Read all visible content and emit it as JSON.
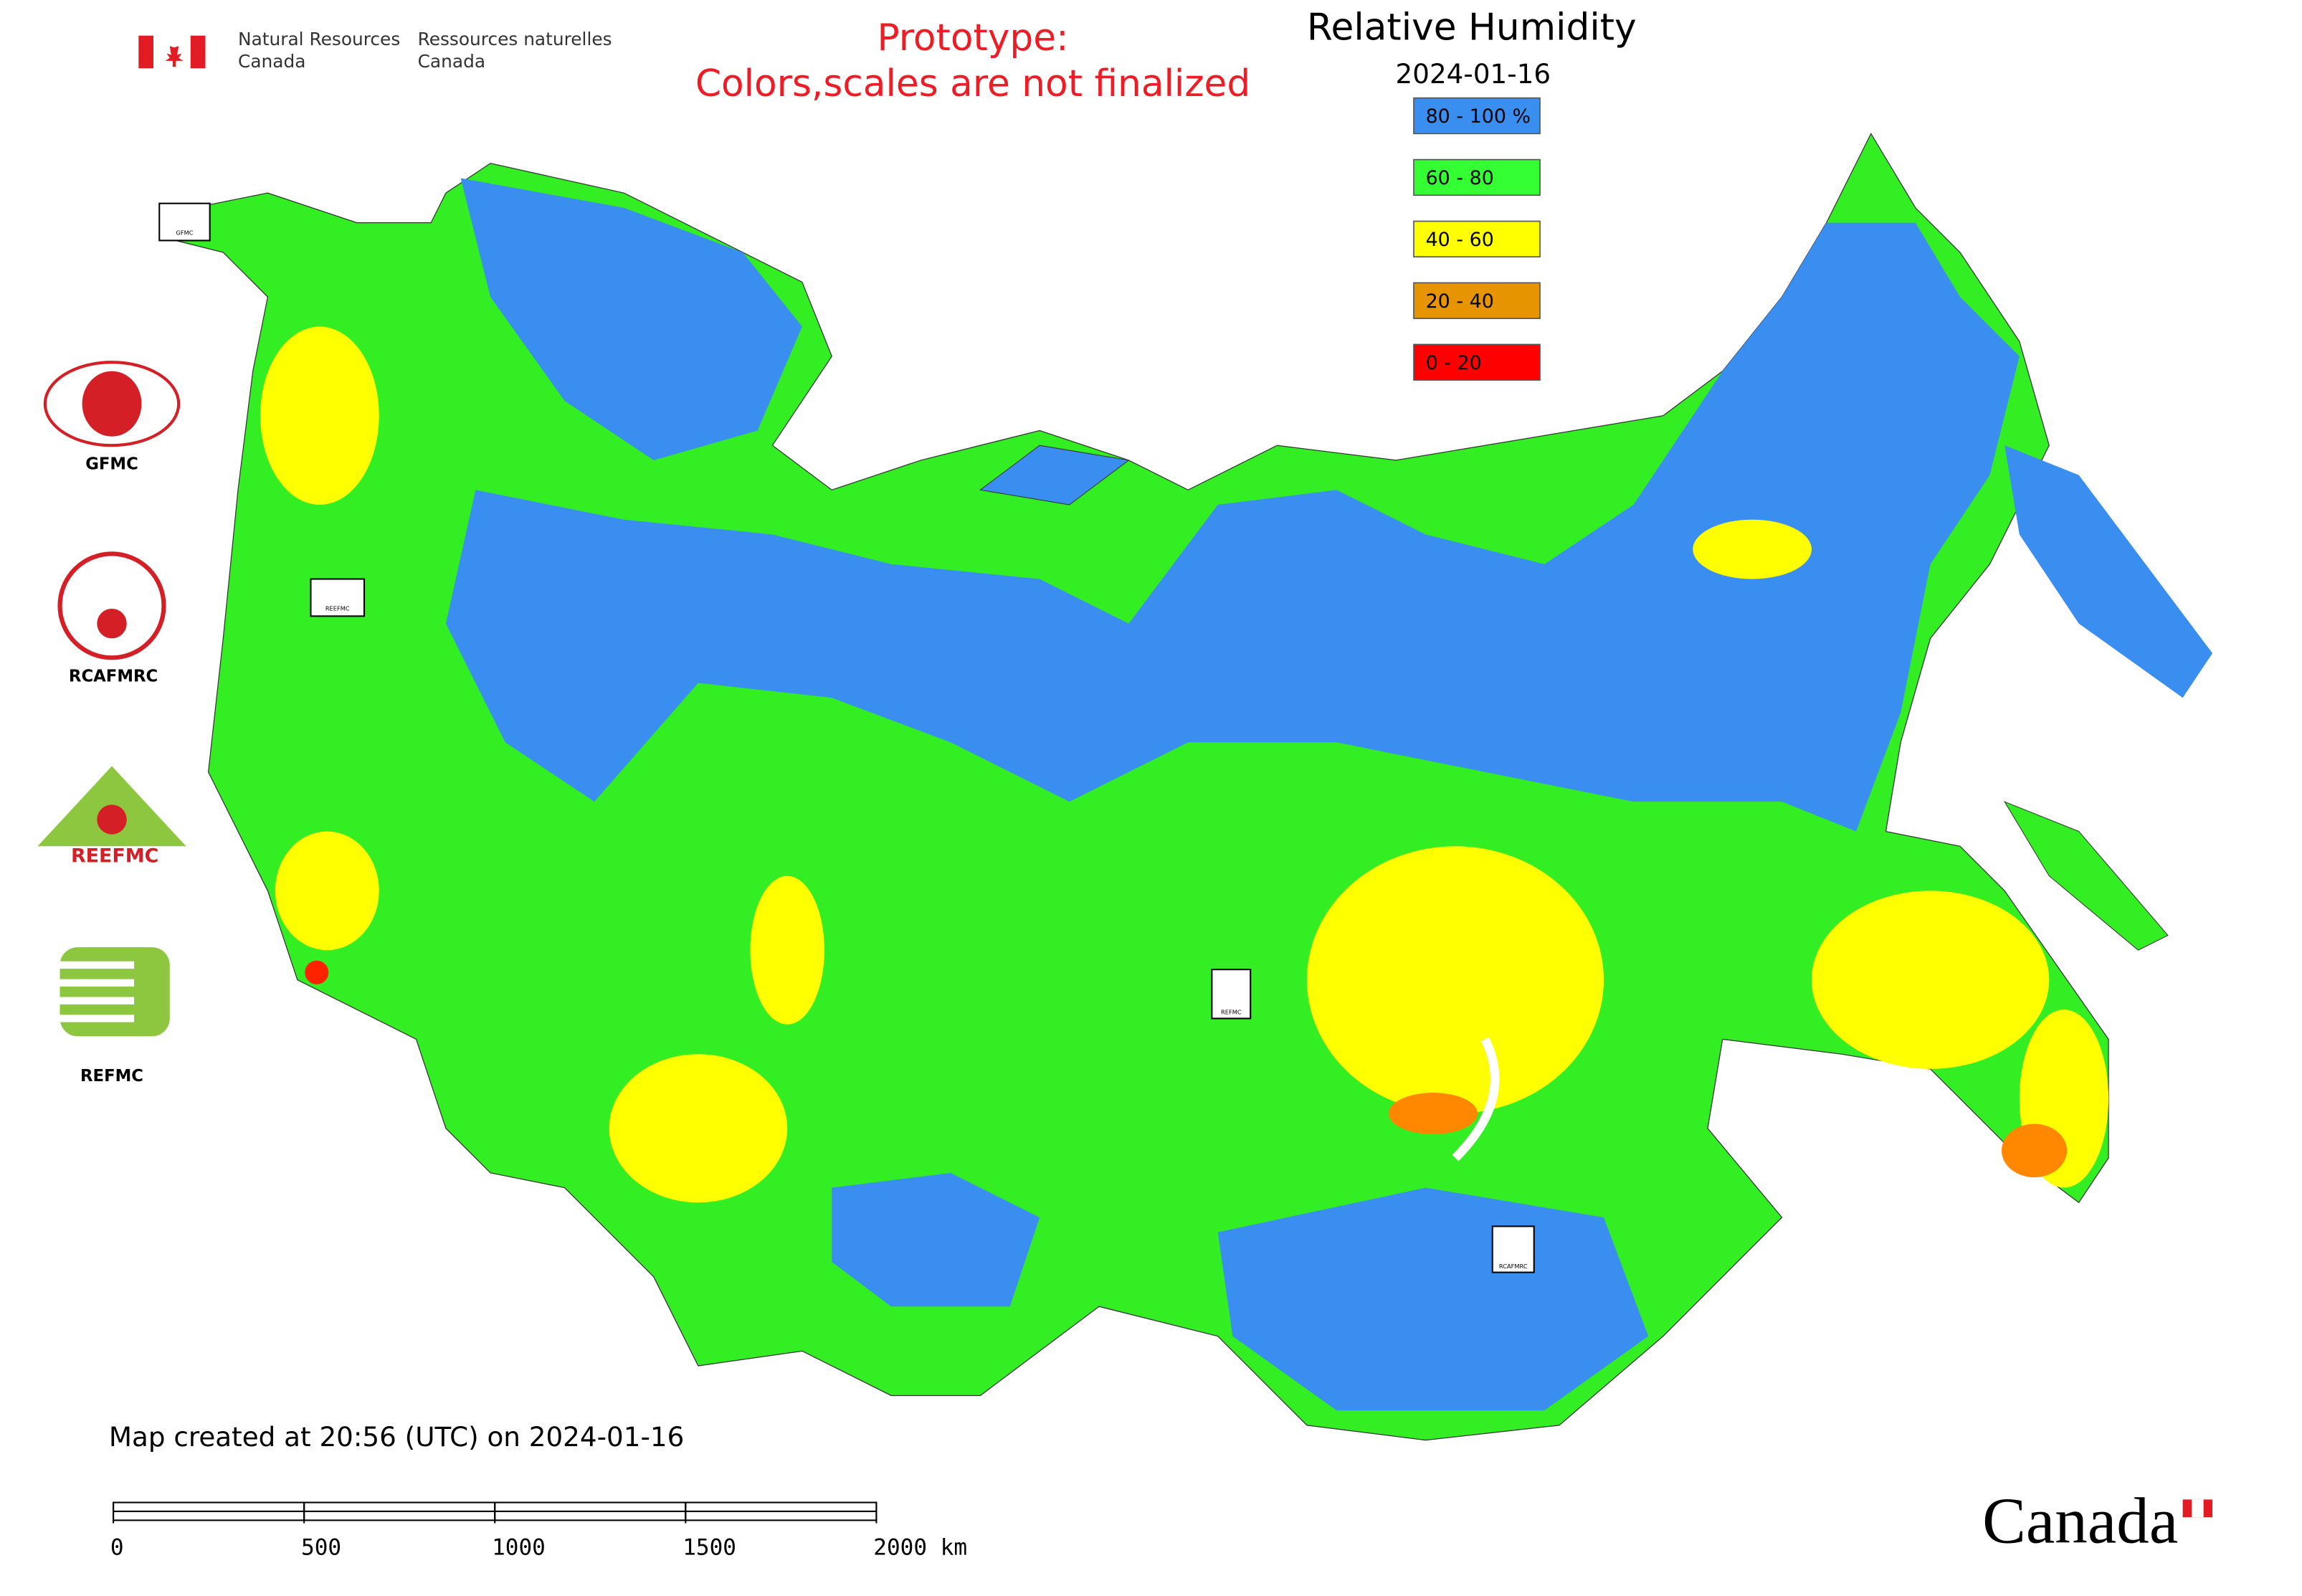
{
  "header": {
    "agency_en": [
      "Natural Resources",
      "Canada"
    ],
    "agency_fr": [
      "Ressources naturelles",
      "Canada"
    ],
    "notice": [
      "Prototype:",
      "Colors,scales are not finalized"
    ]
  },
  "map": {
    "title": "Relative Humidity",
    "date": "2024-01-16",
    "legend": [
      {
        "label": "80 - 100 %",
        "color": "#3a8ef0"
      },
      {
        "label": "60 - 80",
        "color": "#33ff33"
      },
      {
        "label": "40 - 60",
        "color": "#ffff00"
      },
      {
        "label": "20 - 40",
        "color": "#e69500"
      },
      {
        "label": "0 - 20",
        "color": "#ff0000"
      }
    ],
    "footer": "Map created at 20:56 (UTC) on 2024-01-16",
    "scale_ticks": [
      0,
      500,
      1000,
      1500,
      {
        "value": 2000,
        "label": "2000 km"
      }
    ]
  },
  "logos": [
    "GFMC",
    "RCAFMRC",
    "REEFMC",
    "REFMC"
  ],
  "wordmark": "Canada"
}
